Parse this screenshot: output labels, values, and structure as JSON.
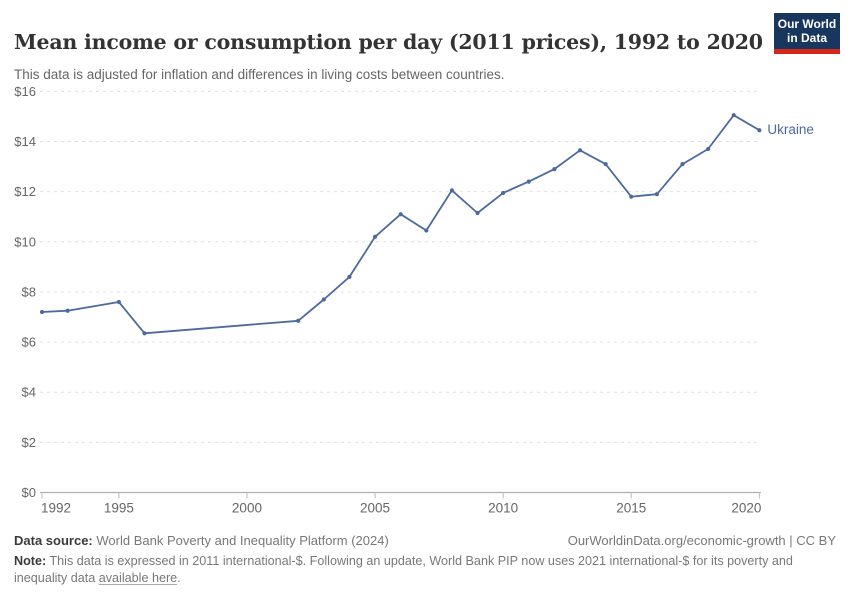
{
  "header": {
    "logo": {
      "line1": "Our World",
      "line2": "in Data"
    }
  },
  "colors": {
    "series": "#4c6a9c",
    "logo_bg": "#18365e",
    "logo_accent": "#d5281c",
    "grid": "#e0e0e0",
    "axis": "#b0b0b0",
    "tick": "#bbbbbb",
    "tick_text": "#666666"
  },
  "chart_data": {
    "type": "line",
    "title": "Mean income or consumption per day (2011 prices), 1992 to 2020",
    "subtitle": "This data is adjusted for inflation and differences in living costs between countries.",
    "xlabel": "",
    "ylabel": "",
    "xlim": [
      1992,
      2020
    ],
    "ylim": [
      0,
      16
    ],
    "x_ticks": [
      1992,
      1995,
      2000,
      2005,
      2010,
      2015,
      2020
    ],
    "y_ticks": [
      0,
      2,
      4,
      6,
      8,
      10,
      12,
      14,
      16
    ],
    "y_tick_prefix": "$",
    "grid": "horizontal-dashed",
    "legend_position": "end-of-line-label",
    "series": [
      {
        "name": "Ukraine",
        "color": "#4c6a9c",
        "points": [
          [
            1992,
            7.2
          ],
          [
            1993,
            7.25
          ],
          [
            1995,
            7.6
          ],
          [
            1996,
            6.35
          ],
          [
            2002,
            6.85
          ],
          [
            2003,
            7.7
          ],
          [
            2004,
            8.6
          ],
          [
            2005,
            10.2
          ],
          [
            2006,
            11.1
          ],
          [
            2007,
            10.45
          ],
          [
            2008,
            12.05
          ],
          [
            2009,
            11.15
          ],
          [
            2010,
            11.95
          ],
          [
            2011,
            12.4
          ],
          [
            2012,
            12.9
          ],
          [
            2013,
            13.65
          ],
          [
            2014,
            13.1
          ],
          [
            2015,
            11.8
          ],
          [
            2016,
            11.9
          ],
          [
            2017,
            13.1
          ],
          [
            2018,
            13.7
          ],
          [
            2019,
            15.05
          ],
          [
            2020,
            14.45
          ]
        ]
      }
    ]
  },
  "footer": {
    "source_label": "Data source:",
    "source_value": "World Bank Poverty and Inequality Platform (2024)",
    "rights": "OurWorldinData.org/economic-growth | CC BY",
    "note_label": "Note:",
    "note_text": "This data is expressed in 2011 international-$. Following an update, World Bank PIP now uses 2021 international-$ for its poverty and inequality data",
    "note_link": "available here",
    "note_suffix": "."
  }
}
